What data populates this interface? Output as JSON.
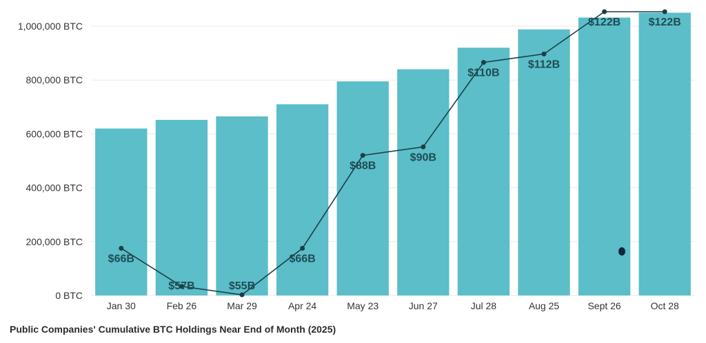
{
  "chart_data": {
    "type": "bar",
    "title": "Public Companies' Cumulative BTC Holdings Near End of Month (2025)",
    "categories": [
      "Jan 30",
      "Feb 26",
      "Mar 29",
      "Apr 24",
      "May 23",
      "Jun 27",
      "Jul 28",
      "Aug 25",
      "Sept 26",
      "Oct 28"
    ],
    "series": [
      {
        "type": "bar",
        "values": [
          620000,
          652000,
          665000,
          710000,
          795000,
          840000,
          920000,
          988000,
          1032000,
          1050000
        ]
      },
      {
        "type": "line",
        "values": [
          66,
          57,
          55,
          66,
          88,
          90,
          110,
          112,
          122,
          122
        ],
        "labels": [
          "$66B",
          "$57B",
          "$55B",
          "$66B",
          "$88B",
          "$90B",
          "$110B",
          "$112B",
          "$122B",
          "$122B"
        ]
      }
    ],
    "y_ticks": [
      "0 BTC",
      "200,000 BTC",
      "400,000 BTC",
      "600,000 BTC",
      "800,000 BTC",
      "1,000,000 BTC"
    ],
    "ylim": [
      0,
      1000000
    ],
    "line_ylim": [
      55,
      122
    ],
    "colors": {
      "bar": "#5bbec8",
      "line": "#1c3e46",
      "label": "#1f4b53"
    },
    "grid": true
  }
}
